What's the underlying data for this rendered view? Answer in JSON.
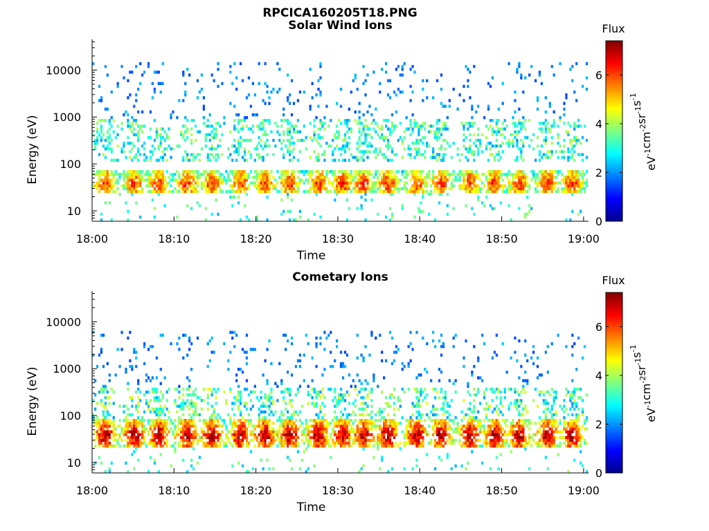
{
  "figure": {
    "filename": "RPCICA160205T18.PNG"
  },
  "chart_data": [
    {
      "type": "heatmap",
      "title": "Solar Wind Ions",
      "xlabel": "Time",
      "ylabel": "Energy (eV)",
      "y_scale": "log",
      "ylim": [
        6,
        45000
      ],
      "x_range": [
        "18:00",
        "19:00"
      ],
      "x_ticks": [
        "18:00",
        "18:10",
        "18:20",
        "18:30",
        "18:40",
        "18:50",
        "19:00"
      ],
      "y_ticks": [
        {
          "value": 10,
          "label": "10"
        },
        {
          "value": 100,
          "label": "100"
        },
        {
          "value": 1000,
          "label": "1000"
        },
        {
          "value": 10000,
          "label": "10000"
        }
      ],
      "colorbar": {
        "title": "Flux",
        "label_parts": [
          "eV",
          "-1",
          "cm",
          "-2",
          "sr",
          "-1",
          "s",
          "-1"
        ],
        "range": [
          0,
          7.4
        ],
        "ticks": [
          {
            "value": 0,
            "label": "0"
          },
          {
            "value": 2,
            "label": "2"
          },
          {
            "value": 4,
            "label": "4"
          },
          {
            "value": 6,
            "label": "6"
          }
        ],
        "colormap": "jet"
      },
      "low_band": {
        "energy_min": 25,
        "energy_max": 75,
        "peak_flux": 6.2
      },
      "mid_band": {
        "energy_min": 120,
        "energy_max": 900,
        "peak_flux": 4.2
      },
      "sparse": {
        "energy_min": 150,
        "energy_max": 15000,
        "flux_min": 1.4,
        "flux_max": 2.4
      },
      "burst_minutes": [
        1.5,
        5,
        8,
        11.5,
        14.5,
        18,
        21,
        24,
        27.5,
        30.5,
        33,
        36,
        39.5,
        42.5,
        46,
        49,
        52,
        55.5,
        58.5
      ]
    },
    {
      "type": "heatmap",
      "title": "Cometary Ions",
      "xlabel": "Time",
      "ylabel": "Energy (eV)",
      "y_scale": "log",
      "ylim": [
        6,
        45000
      ],
      "x_range": [
        "18:00",
        "19:00"
      ],
      "x_ticks": [
        "18:00",
        "18:10",
        "18:20",
        "18:30",
        "18:40",
        "18:50",
        "19:00"
      ],
      "y_ticks": [
        {
          "value": 10,
          "label": "10"
        },
        {
          "value": 100,
          "label": "100"
        },
        {
          "value": 1000,
          "label": "1000"
        },
        {
          "value": 10000,
          "label": "10000"
        }
      ],
      "colorbar": {
        "title": "Flux",
        "label_parts": [
          "eV",
          "-1",
          "cm",
          "-2",
          "sr",
          "-1",
          "s",
          "-1"
        ],
        "range": [
          0,
          7.4
        ],
        "ticks": [
          {
            "value": 0,
            "label": "0"
          },
          {
            "value": 2,
            "label": "2"
          },
          {
            "value": 4,
            "label": "4"
          },
          {
            "value": 6,
            "label": "6"
          }
        ],
        "colormap": "jet"
      },
      "low_band": {
        "energy_min": 20,
        "energy_max": 90,
        "peak_flux": 7.2
      },
      "mid_band": {
        "energy_min": 90,
        "energy_max": 400,
        "peak_flux": 4.5
      },
      "sparse": {
        "energy_min": 300,
        "energy_max": 6000,
        "flux_min": 1.4,
        "flux_max": 2.4
      },
      "burst_minutes": [
        1.5,
        5,
        8,
        11.5,
        14.5,
        18,
        21,
        24,
        27.5,
        30.5,
        33,
        36,
        39.5,
        42.5,
        46,
        49,
        52,
        55.5,
        58.5
      ]
    }
  ]
}
